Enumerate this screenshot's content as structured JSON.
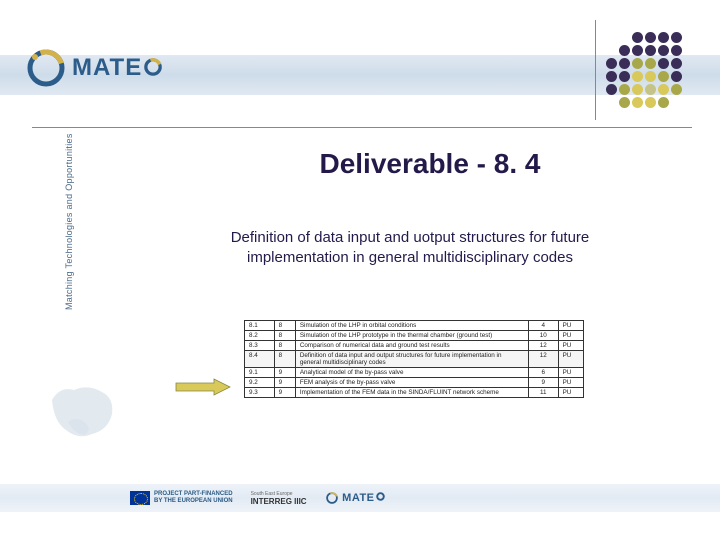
{
  "header": {
    "logo_text": "MATE",
    "sidebar_text": "Matching Technologies and Opportunities"
  },
  "title": "Deliverable - 8. 4",
  "subtitle": "Definition of data input and uotput structures for future implementation in general multidisciplinary codes",
  "dot_motif": {
    "colors": {
      "dark": "#3a2e58",
      "olive": "#a8a84a",
      "yellow": "#d9c95a",
      "light": "#c4c488"
    },
    "grid": [
      [
        "",
        "",
        "dark",
        "dark",
        "dark",
        "dark"
      ],
      [
        "",
        "dark",
        "dark",
        "dark",
        "dark",
        "dark"
      ],
      [
        "dark",
        "dark",
        "olive",
        "olive",
        "dark",
        "dark"
      ],
      [
        "dark",
        "dark",
        "yellow",
        "yellow",
        "olive",
        "dark"
      ],
      [
        "dark",
        "olive",
        "yellow",
        "light",
        "yellow",
        "olive"
      ],
      [
        "",
        "olive",
        "yellow",
        "yellow",
        "olive",
        ""
      ]
    ]
  },
  "arrow": {
    "fill": "#d9c95a",
    "stroke": "#888844"
  },
  "table": {
    "highlight_index": 3,
    "rows": [
      {
        "id": "8.1",
        "wp": "8",
        "desc": "Simulation of the LHP in orbital conditions",
        "m": "4",
        "cls": "PU"
      },
      {
        "id": "8.2",
        "wp": "8",
        "desc": "Simulation of the LHP prototype in the thermal chamber (ground test)",
        "m": "10",
        "cls": "PU"
      },
      {
        "id": "8.3",
        "wp": "8",
        "desc": "Comparison of numerical data and ground test results",
        "m": "12",
        "cls": "PU"
      },
      {
        "id": "8.4",
        "wp": "8",
        "desc": "Definition of data input and output structures for future implementation in general multidisciplinary codes",
        "m": "12",
        "cls": "PU"
      },
      {
        "id": "9.1",
        "wp": "9",
        "desc": "Analytical model of the by-pass valve",
        "m": "6",
        "cls": "PU"
      },
      {
        "id": "9.2",
        "wp": "9",
        "desc": "FEM analysis of the by-pass valve",
        "m": "9",
        "cls": "PU"
      },
      {
        "id": "9.3",
        "wp": "9",
        "desc": "Implementation of the FEM data in the SINDA/FLUINT network scheme",
        "m": "11",
        "cls": "PU"
      }
    ]
  },
  "footer": {
    "eu_line1": "PROJECT PART-FINANCED",
    "eu_line2": "BY THE EUROPEAN UNION",
    "interreg_sub": "South East Europe",
    "interreg": "INTERREG IIIC",
    "mateo": "MATE"
  },
  "colors": {
    "title": "#241a4a",
    "brand": "#2c5c8a",
    "band": "#b8cce0"
  }
}
